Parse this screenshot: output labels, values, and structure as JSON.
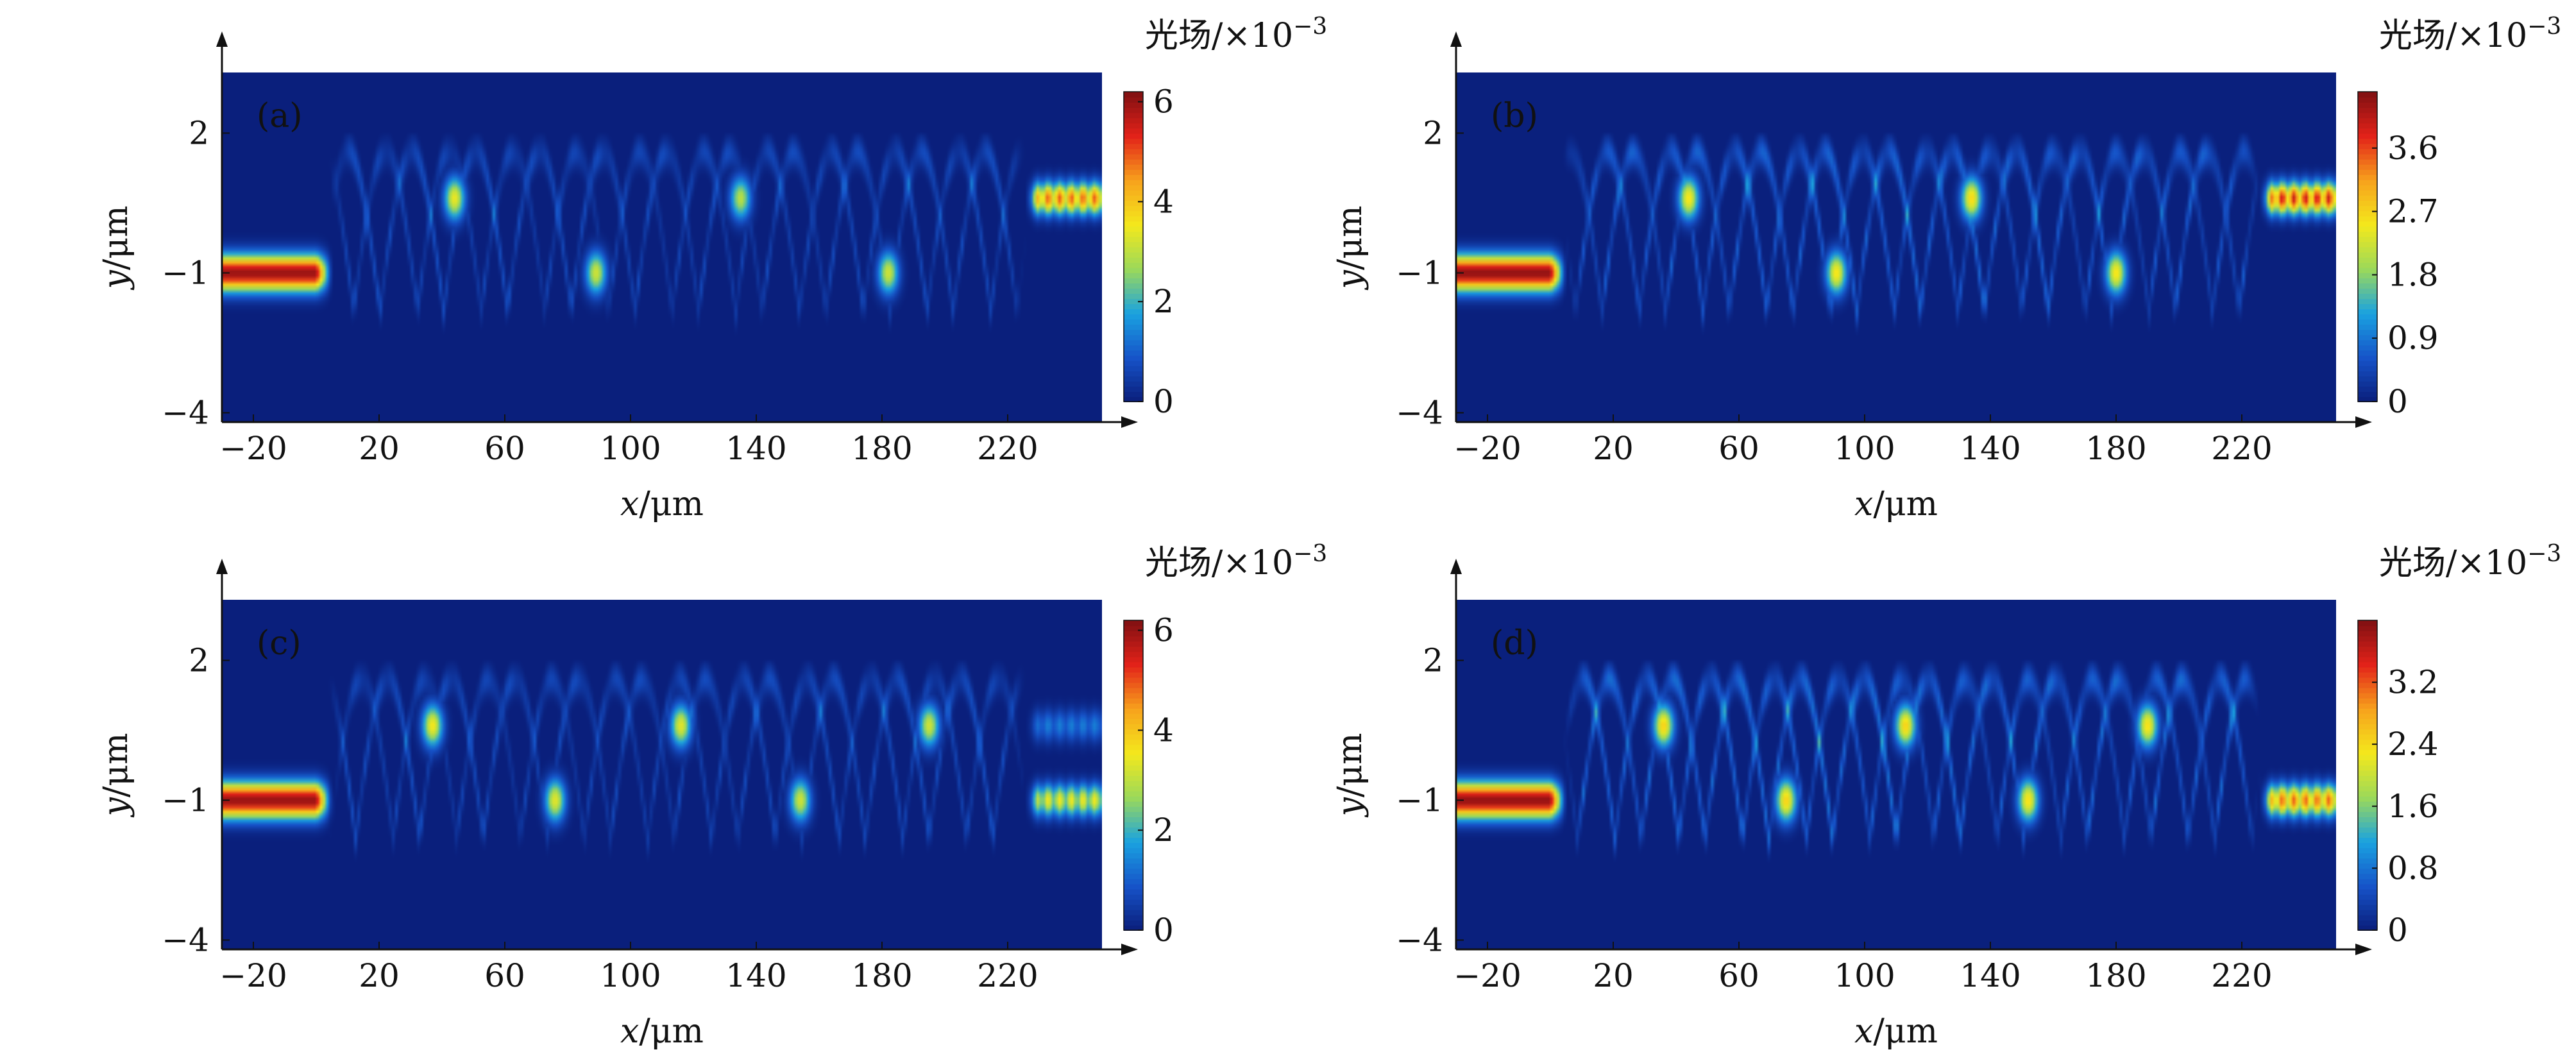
{
  "chart_data": [
    {
      "type": "heatmap",
      "panel_label": "(a)",
      "xlabel_var": "x",
      "xlabel_unit": "/μm",
      "ylabel_var": "y",
      "ylabel_unit": "/μm",
      "xlim": [
        -30,
        250
      ],
      "ylim": [
        -4.2,
        3.3
      ],
      "xticks": [
        -20,
        20,
        60,
        100,
        140,
        180,
        220
      ],
      "xtick_labels": [
        "−20",
        "20",
        "60",
        "100",
        "140",
        "180",
        "220"
      ],
      "yticks": [
        -4,
        -1,
        2
      ],
      "ytick_labels": [
        "−4",
        "−1",
        "2"
      ],
      "colorbar": {
        "title": "光场/",
        "title_multiplier": "×10",
        "title_exponent": "−3",
        "range": [
          0,
          6.2
        ],
        "ticks": [
          0,
          2,
          4,
          6
        ],
        "tick_labels": [
          "0",
          "2",
          "4",
          "6"
        ]
      },
      "input_waveguide": {
        "x_range": [
          -30,
          0
        ],
        "y": -1,
        "peak": 6.0
      },
      "output_waveguide": {
        "x_range": [
          230,
          250
        ],
        "y": 0.6,
        "peak": 5.0
      },
      "hotspots": [
        {
          "x": 44,
          "y": 0.6,
          "v": 3.5
        },
        {
          "x": 89,
          "y": -1.0,
          "v": 3.2
        },
        {
          "x": 135,
          "y": 0.6,
          "v": 3.0
        },
        {
          "x": 182,
          "y": -1.0,
          "v": 3.2
        }
      ],
      "colorscale": [
        "#0a1e7a",
        "#1653c9",
        "#1aa2e0",
        "#9bd95a",
        "#f4e81c",
        "#f7a21c",
        "#e32219",
        "#801012"
      ]
    },
    {
      "type": "heatmap",
      "panel_label": "(b)",
      "xlabel_var": "x",
      "xlabel_unit": "/μm",
      "ylabel_var": "y",
      "ylabel_unit": "/μm",
      "xlim": [
        -30,
        250
      ],
      "ylim": [
        -4.2,
        3.3
      ],
      "xticks": [
        -20,
        20,
        60,
        100,
        140,
        180,
        220
      ],
      "xtick_labels": [
        "−20",
        "20",
        "60",
        "100",
        "140",
        "180",
        "220"
      ],
      "yticks": [
        -4,
        -1,
        2
      ],
      "ytick_labels": [
        "−4",
        "−1",
        "2"
      ],
      "colorbar": {
        "title": "光场/",
        "title_multiplier": "×10",
        "title_exponent": "−3",
        "range": [
          0,
          4.4
        ],
        "ticks": [
          0,
          0.9,
          1.8,
          2.7,
          3.6
        ],
        "tick_labels": [
          "0",
          "0.9",
          "1.8",
          "2.7",
          "3.6"
        ]
      },
      "input_waveguide": {
        "x_range": [
          -30,
          0
        ],
        "y": -1,
        "peak": 4.3
      },
      "output_waveguide": {
        "x_range": [
          230,
          250
        ],
        "y": 0.6,
        "peak": 4.0
      },
      "hotspots": [
        {
          "x": 44,
          "y": 0.6,
          "v": 2.6
        },
        {
          "x": 91,
          "y": -1.0,
          "v": 2.6
        },
        {
          "x": 134,
          "y": 0.6,
          "v": 2.7
        },
        {
          "x": 180,
          "y": -1.0,
          "v": 2.6
        }
      ],
      "colorscale": [
        "#0a1e7a",
        "#1653c9",
        "#1aa2e0",
        "#9bd95a",
        "#f4e81c",
        "#f7a21c",
        "#e32219",
        "#801012"
      ]
    },
    {
      "type": "heatmap",
      "panel_label": "(c)",
      "xlabel_var": "x",
      "xlabel_unit": "/μm",
      "ylabel_var": "y",
      "ylabel_unit": "/μm",
      "xlim": [
        -30,
        250
      ],
      "ylim": [
        -4.2,
        3.3
      ],
      "xticks": [
        -20,
        20,
        60,
        100,
        140,
        180,
        220
      ],
      "xtick_labels": [
        "−20",
        "20",
        "60",
        "100",
        "140",
        "180",
        "220"
      ],
      "yticks": [
        -4,
        -1,
        2
      ],
      "ytick_labels": [
        "−4",
        "−1",
        "2"
      ],
      "colorbar": {
        "title": "光场/",
        "title_multiplier": "×10",
        "title_exponent": "−3",
        "range": [
          0,
          6.2
        ],
        "ticks": [
          0,
          2,
          4,
          6
        ],
        "tick_labels": [
          "0",
          "2",
          "4",
          "6"
        ]
      },
      "input_waveguide": {
        "x_range": [
          -30,
          0
        ],
        "y": -1,
        "peak": 6.0
      },
      "output_waveguide": {
        "x_range": [
          230,
          250
        ],
        "y": -1,
        "peak": 3.6
      },
      "output_waveguide_2": {
        "x_range": [
          230,
          250
        ],
        "y": 0.6,
        "peak": 1.4
      },
      "hotspots": [
        {
          "x": 37,
          "y": 0.6,
          "v": 3.6
        },
        {
          "x": 76,
          "y": -1.0,
          "v": 3.4
        },
        {
          "x": 116,
          "y": 0.6,
          "v": 3.4
        },
        {
          "x": 154,
          "y": -1.0,
          "v": 3.2
        },
        {
          "x": 195,
          "y": 0.6,
          "v": 3.2
        }
      ],
      "colorscale": [
        "#0a1e7a",
        "#1653c9",
        "#1aa2e0",
        "#9bd95a",
        "#f4e81c",
        "#f7a21c",
        "#e32219",
        "#801012"
      ]
    },
    {
      "type": "heatmap",
      "panel_label": "(d)",
      "xlabel_var": "x",
      "xlabel_unit": "/μm",
      "ylabel_var": "y",
      "ylabel_unit": "/μm",
      "xlim": [
        -30,
        250
      ],
      "ylim": [
        -4.2,
        3.3
      ],
      "xticks": [
        -20,
        20,
        60,
        100,
        140,
        180,
        220
      ],
      "xtick_labels": [
        "−20",
        "20",
        "60",
        "100",
        "140",
        "180",
        "220"
      ],
      "yticks": [
        -4,
        -1,
        2
      ],
      "ytick_labels": [
        "−4",
        "−1",
        "2"
      ],
      "colorbar": {
        "title": "光场/",
        "title_multiplier": "×10",
        "title_exponent": "−3",
        "range": [
          0,
          4.0
        ],
        "ticks": [
          0,
          0.8,
          1.6,
          2.4,
          3.2
        ],
        "tick_labels": [
          "0",
          "0.8",
          "1.6",
          "2.4",
          "3.2"
        ]
      },
      "input_waveguide": {
        "x_range": [
          -30,
          0
        ],
        "y": -1,
        "peak": 3.9
      },
      "output_waveguide": {
        "x_range": [
          230,
          250
        ],
        "y": -1,
        "peak": 3.2
      },
      "hotspots": [
        {
          "x": 36,
          "y": 0.6,
          "v": 2.5
        },
        {
          "x": 75,
          "y": -1.0,
          "v": 2.5
        },
        {
          "x": 113,
          "y": 0.6,
          "v": 2.5
        },
        {
          "x": 152,
          "y": -1.0,
          "v": 2.4
        },
        {
          "x": 190,
          "y": 0.6,
          "v": 2.4
        }
      ],
      "colorscale": [
        "#0a1e7a",
        "#1653c9",
        "#1aa2e0",
        "#9bd95a",
        "#f4e81c",
        "#f7a21c",
        "#e32219",
        "#801012"
      ]
    }
  ]
}
